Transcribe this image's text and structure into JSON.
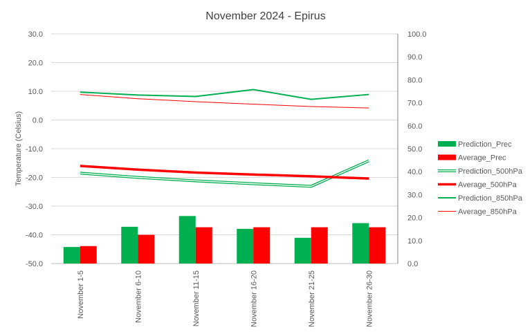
{
  "chart_data": {
    "type": "bar",
    "title": "November 2024 - Epirus",
    "ylabel": "Temperature (Celsius)",
    "y2label": "",
    "ylim": [
      -50,
      30
    ],
    "y2lim": [
      0,
      100
    ],
    "yticks": [
      "-50.0",
      "-40.0",
      "-30.0",
      "-20.0",
      "-10.0",
      "0.0",
      "10.0",
      "20.0",
      "30.0"
    ],
    "y2ticks": [
      "0.0",
      "10.0",
      "20.0",
      "30.0",
      "40.0",
      "50.0",
      "60.0",
      "70.0",
      "80.0",
      "90.0",
      "100.0"
    ],
    "categories": [
      "November 1-5",
      "November 6-10",
      "November 11-15",
      "November 16-20",
      "November 21-25",
      "November 26-30"
    ],
    "grid": true,
    "legend_position": "right",
    "series": [
      {
        "name": "Prediction_Prec",
        "kind": "bar",
        "axis": "right",
        "color": "#00b050",
        "values": [
          7.2,
          16.0,
          20.7,
          15.1,
          11.2,
          17.6
        ]
      },
      {
        "name": "Average_Prec",
        "kind": "bar",
        "axis": "right",
        "color": "#ff0000",
        "values": [
          7.6,
          12.5,
          15.8,
          15.8,
          15.8,
          15.8
        ]
      },
      {
        "name": "Prediction_500hPa",
        "kind": "line",
        "style": "double",
        "axis": "left",
        "color": "#00b050",
        "values": [
          -18.5,
          -20.0,
          -21.2,
          -22.2,
          -23.1,
          -14.2
        ]
      },
      {
        "name": "Average_500hPa",
        "kind": "line",
        "style": "thick",
        "axis": "left",
        "color": "#ff0000",
        "values": [
          -16.0,
          -17.3,
          -18.3,
          -19.0,
          -19.6,
          -20.4
        ]
      },
      {
        "name": "Prediction_850hPa",
        "kind": "line",
        "style": "medium",
        "axis": "left",
        "color": "#00b050",
        "values": [
          9.7,
          8.7,
          8.2,
          10.6,
          7.2,
          8.9
        ]
      },
      {
        "name": "Average_850hPa",
        "kind": "line",
        "style": "thin",
        "axis": "left",
        "color": "#ff0000",
        "values": [
          8.9,
          7.4,
          6.4,
          5.5,
          4.7,
          4.2
        ]
      }
    ]
  }
}
